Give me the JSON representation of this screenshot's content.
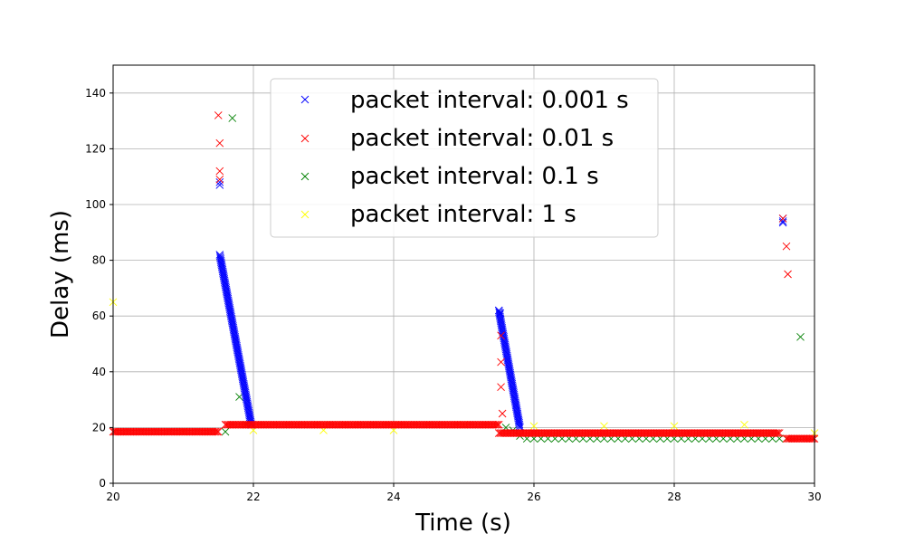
{
  "chart_data": {
    "type": "scatter",
    "title": "",
    "xlabel": "Time (s)",
    "ylabel": "Delay (ms)",
    "xlim": [
      20,
      30
    ],
    "ylim": [
      0,
      150
    ],
    "xticks": [
      20,
      22,
      24,
      26,
      28,
      30
    ],
    "yticks": [
      0,
      20,
      40,
      60,
      80,
      100,
      120,
      140
    ],
    "grid": true,
    "legend_position": "top-center",
    "marker": "x",
    "series": [
      {
        "name": "packet interval: 0.001 s",
        "color": "#0000ff",
        "segments": [
          {
            "x0": 21.52,
            "y0": 82,
            "x1": 21.97,
            "y1": 21,
            "step": 0.004
          }
        ],
        "points": [
          [
            21.52,
            107
          ],
          [
            21.52,
            108
          ],
          [
            25.5,
            62
          ],
          [
            25.52,
            61
          ],
          [
            29.55,
            95
          ],
          [
            29.55,
            94
          ],
          [
            29.55,
            93.5
          ]
        ],
        "lines": [
          {
            "x0": 25.5,
            "y0": 62,
            "x1": 25.8,
            "y1": 20,
            "step": 0.004
          }
        ]
      },
      {
        "name": "packet interval: 0.01 s",
        "color": "#ff0000",
        "segments": [
          {
            "x0": 20.0,
            "y0": 18.5,
            "x1": 21.5,
            "y1": 18.5,
            "step": 0.02
          },
          {
            "x0": 21.6,
            "y0": 21,
            "x1": 25.5,
            "y1": 21,
            "step": 0.02
          },
          {
            "x0": 25.5,
            "y0": 18,
            "x1": 29.5,
            "y1": 18,
            "step": 0.02
          },
          {
            "x0": 29.6,
            "y0": 16,
            "x1": 30.0,
            "y1": 16,
            "step": 0.02
          }
        ],
        "points": [
          [
            21.5,
            132
          ],
          [
            21.52,
            122
          ],
          [
            21.52,
            112
          ],
          [
            21.52,
            109
          ],
          [
            25.53,
            53
          ],
          [
            25.53,
            43.5
          ],
          [
            25.53,
            34.5
          ],
          [
            25.55,
            25
          ],
          [
            29.6,
            85
          ],
          [
            29.62,
            75
          ],
          [
            29.55,
            95
          ]
        ]
      },
      {
        "name": "packet interval: 0.1 s",
        "color": "#008000",
        "segments": [
          {
            "x0": 25.9,
            "y0": 16,
            "x1": 29.5,
            "y1": 16,
            "step": 0.1
          }
        ],
        "points": [
          [
            21.6,
            18.5
          ],
          [
            21.7,
            131
          ],
          [
            21.8,
            31
          ],
          [
            21.9,
            21
          ],
          [
            25.6,
            20
          ],
          [
            25.7,
            19
          ],
          [
            25.8,
            17
          ],
          [
            29.6,
            16
          ],
          [
            29.8,
            52.5
          ]
        ]
      },
      {
        "name": "packet interval: 1 s",
        "color": "#ffff00",
        "points": [
          [
            20.0,
            65
          ],
          [
            21.0,
            18.5
          ],
          [
            22.0,
            19
          ],
          [
            23.0,
            19
          ],
          [
            24.0,
            19
          ],
          [
            25.0,
            21
          ],
          [
            26.0,
            20.5
          ],
          [
            27.0,
            20.5
          ],
          [
            28.0,
            20.5
          ],
          [
            29.0,
            21
          ],
          [
            30.0,
            18
          ]
        ]
      }
    ]
  }
}
